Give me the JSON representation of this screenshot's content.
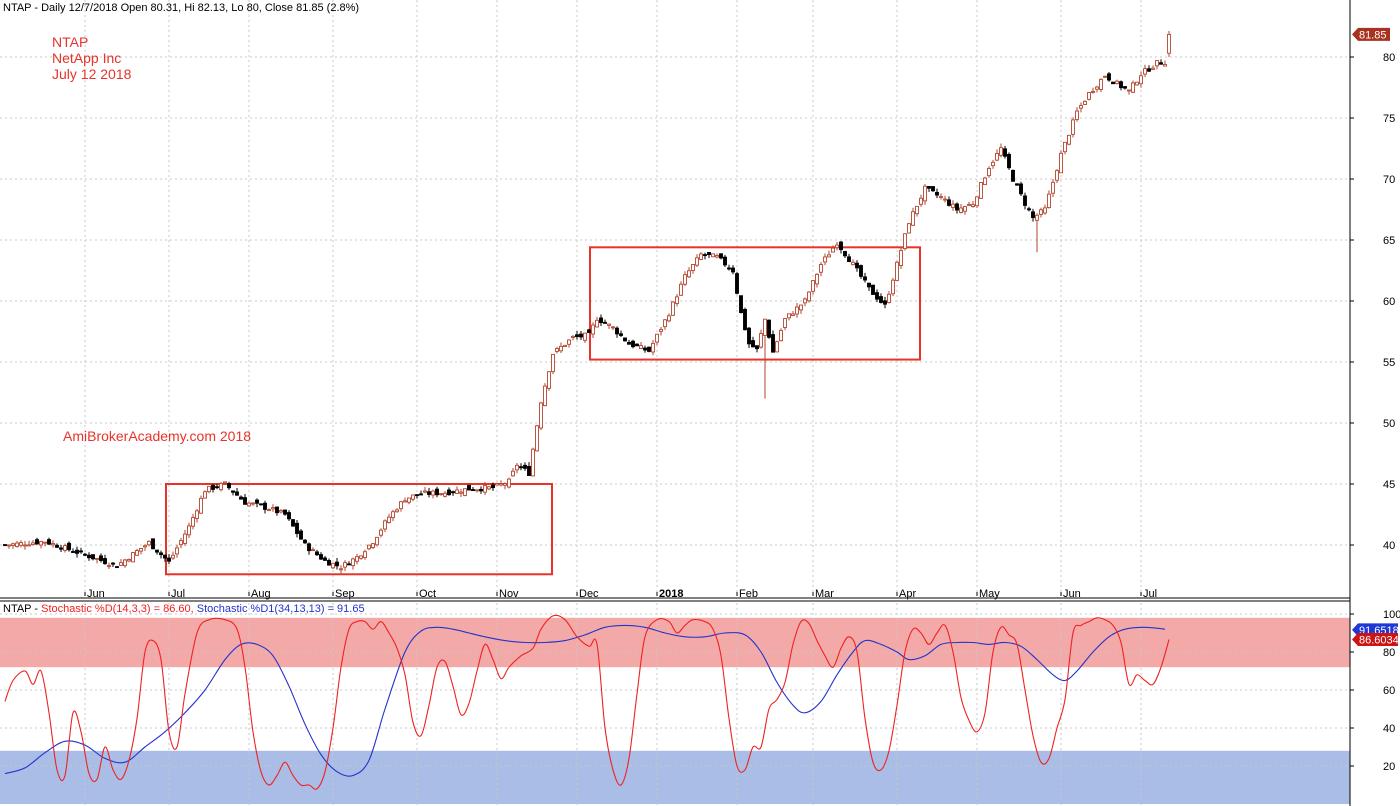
{
  "colors": {
    "up_candle": "#b5462f",
    "down_candle": "#000000",
    "box": "#e8332a",
    "stoch_fast": "#ee2222",
    "stoch_slow": "#2233cc",
    "overbought_band": "#f4a9a9",
    "oversold_band": "#a9bde6",
    "grid": "#c8c8c8",
    "price_badge": "#a8321f",
    "stoch_blue_badge": "#1f37d6",
    "stoch_red_badge": "#cc1414"
  },
  "header": {
    "price_title": "NTAP - Daily 12/7/2018 Open 80.31, Hi 82.13, Lo 80, Close 81.85 (2.8%)",
    "stoch_prefix": "NTAP - ",
    "stoch_fast_label": "Stochastic %D(14,3,3) = 86.60, ",
    "stoch_slow_label": "Stochastic %D1(34,13,13) = 91.65"
  },
  "annotations": {
    "ticker": "NTAP",
    "company": "NetApp Inc",
    "date": "July 12 2018",
    "credit": "AmiBrokerAcademy.com  2018"
  },
  "badges": {
    "last_price": "81.85",
    "stoch_slow_value": "91.6518",
    "stoch_fast_value": "86.6034"
  },
  "chart_data": [
    {
      "type": "candlestick",
      "ylim": [
        36,
        84
      ],
      "y_ticks": [
        40,
        45,
        50,
        55,
        60,
        65,
        70,
        75,
        80
      ],
      "x_tick_labels": [
        "Jun",
        "Jul",
        "Aug",
        "Sep",
        "Oct",
        "Nov",
        "Dec",
        "2018",
        "Feb",
        "Mar",
        "Apr",
        "May",
        "Jun",
        "Jul"
      ],
      "x_tick_index": [
        20,
        41,
        61,
        82,
        103,
        123,
        143,
        163,
        183,
        202,
        223,
        243,
        264,
        284
      ],
      "bars": 292,
      "last": {
        "open": 80.31,
        "high": 82.13,
        "low": 80,
        "close": 81.85
      },
      "close_anchors": [
        [
          0,
          40.0
        ],
        [
          10,
          40.3
        ],
        [
          20,
          39.2
        ],
        [
          28,
          38.3
        ],
        [
          36,
          40.2
        ],
        [
          41,
          38.6
        ],
        [
          46,
          41.5
        ],
        [
          50,
          44.5
        ],
        [
          55,
          45.0
        ],
        [
          60,
          43.5
        ],
        [
          66,
          43.0
        ],
        [
          70,
          42.5
        ],
        [
          75,
          40.0
        ],
        [
          80,
          38.7
        ],
        [
          84,
          38.2
        ],
        [
          88,
          39.0
        ],
        [
          92,
          40.3
        ],
        [
          96,
          42.3
        ],
        [
          100,
          43.8
        ],
        [
          104,
          44.2
        ],
        [
          110,
          44.3
        ],
        [
          116,
          44.6
        ],
        [
          122,
          44.7
        ],
        [
          126,
          45.2
        ],
        [
          128,
          46.6
        ],
        [
          131,
          45.9
        ],
        [
          134,
          51.8
        ],
        [
          137,
          55.7
        ],
        [
          142,
          57.0
        ],
        [
          146,
          57.2
        ],
        [
          148,
          58.6
        ],
        [
          152,
          57.8
        ],
        [
          156,
          56.5
        ],
        [
          161,
          55.9
        ],
        [
          166,
          59.0
        ],
        [
          170,
          62.0
        ],
        [
          174,
          63.8
        ],
        [
          178,
          63.6
        ],
        [
          182,
          62.5
        ],
        [
          184,
          59.0
        ],
        [
          186,
          56.5
        ],
        [
          188,
          56.0
        ],
        [
          190,
          58.5
        ],
        [
          192,
          55.8
        ],
        [
          195,
          58.5
        ],
        [
          200,
          60.0
        ],
        [
          204,
          63.0
        ],
        [
          208,
          64.8
        ],
        [
          212,
          63.0
        ],
        [
          216,
          61.0
        ],
        [
          220,
          59.6
        ],
        [
          223,
          63.0
        ],
        [
          226,
          66.5
        ],
        [
          230,
          69.2
        ],
        [
          234,
          68.5
        ],
        [
          238,
          67.5
        ],
        [
          242,
          68.0
        ],
        [
          246,
          71.0
        ],
        [
          249,
          72.5
        ],
        [
          252,
          70.0
        ],
        [
          255,
          68.0
        ],
        [
          257,
          66.8
        ],
        [
          260,
          67.5
        ],
        [
          264,
          72.0
        ],
        [
          268,
          75.5
        ],
        [
          271,
          77.0
        ],
        [
          275,
          78.5
        ],
        [
          278,
          77.8
        ],
        [
          281,
          77.2
        ],
        [
          284,
          78.6
        ],
        [
          288,
          79.5
        ],
        [
          290,
          79.6
        ],
        [
          291,
          81.85
        ]
      ],
      "boxes": [
        {
          "from_bar": 41,
          "to_bar": 136,
          "top": 45.0,
          "bottom": 37.6
        },
        {
          "from_bar": 147,
          "to_bar": 228,
          "top": 64.4,
          "bottom": 55.2
        }
      ],
      "extras": [
        [
          134,
          51.2
        ],
        [
          190,
          52.0
        ],
        [
          258,
          64.0
        ]
      ]
    },
    {
      "type": "line",
      "ylim": [
        0,
        100
      ],
      "y_ticks": [
        20,
        40,
        60,
        80,
        100
      ],
      "bands": [
        {
          "from": 72,
          "to": 98,
          "name": "overbought"
        },
        {
          "from": 0,
          "to": 28,
          "name": "oversold"
        }
      ],
      "series": [
        {
          "name": "Stochastic %D(14,3,3)",
          "last": 86.6,
          "points": [
            [
              0,
              54
            ],
            [
              2,
              65
            ],
            [
              5,
              70
            ],
            [
              7,
              63
            ],
            [
              9,
              70
            ],
            [
              11,
              48
            ],
            [
              13,
              18
            ],
            [
              15,
              15
            ],
            [
              17,
              48
            ],
            [
              19,
              38
            ],
            [
              21,
              16
            ],
            [
              23,
              13
            ],
            [
              25,
              30
            ],
            [
              27,
              18
            ],
            [
              29,
              13
            ],
            [
              31,
              23
            ],
            [
              33,
              45
            ],
            [
              35,
              80
            ],
            [
              37,
              86
            ],
            [
              39,
              76
            ],
            [
              41,
              38
            ],
            [
              43,
              30
            ],
            [
              45,
              58
            ],
            [
              48,
              90
            ],
            [
              51,
              97
            ],
            [
              55,
              97
            ],
            [
              58,
              92
            ],
            [
              60,
              72
            ],
            [
              62,
              38
            ],
            [
              64,
              17
            ],
            [
              66,
              10
            ],
            [
              68,
              15
            ],
            [
              70,
              22
            ],
            [
              72,
              15
            ],
            [
              74,
              10
            ],
            [
              76,
              10
            ],
            [
              78,
              8
            ],
            [
              80,
              17
            ],
            [
              82,
              40
            ],
            [
              84,
              72
            ],
            [
              86,
              92
            ],
            [
              88,
              96
            ],
            [
              90,
              96
            ],
            [
              92,
              92
            ],
            [
              94,
              96
            ],
            [
              96,
              90
            ],
            [
              98,
              82
            ],
            [
              100,
              68
            ],
            [
              102,
              43
            ],
            [
              104,
              36
            ],
            [
              106,
              52
            ],
            [
              108,
              72
            ],
            [
              110,
              75
            ],
            [
              112,
              62
            ],
            [
              114,
              47
            ],
            [
              116,
              53
            ],
            [
              118,
              70
            ],
            [
              120,
              84
            ],
            [
              122,
              76
            ],
            [
              124,
              66
            ],
            [
              126,
              72
            ],
            [
              129,
              78
            ],
            [
              132,
              82
            ],
            [
              134,
              92
            ],
            [
              137,
              99
            ],
            [
              140,
              97
            ],
            [
              143,
              88
            ],
            [
              146,
              83
            ],
            [
              148,
              84
            ],
            [
              150,
              40
            ],
            [
              152,
              18
            ],
            [
              154,
              10
            ],
            [
              156,
              24
            ],
            [
              158,
              58
            ],
            [
              160,
              88
            ],
            [
              163,
              97
            ],
            [
              166,
              96
            ],
            [
              168,
              90
            ],
            [
              170,
              94
            ],
            [
              172,
              97
            ],
            [
              175,
              96
            ],
            [
              177,
              92
            ],
            [
              179,
              78
            ],
            [
              181,
              45
            ],
            [
              183,
              20
            ],
            [
              185,
              18
            ],
            [
              187,
              30
            ],
            [
              189,
              30
            ],
            [
              191,
              50
            ],
            [
              193,
              55
            ],
            [
              195,
              64
            ],
            [
              197,
              84
            ],
            [
              199,
              96
            ],
            [
              201,
              95
            ],
            [
              203,
              86
            ],
            [
              205,
              78
            ],
            [
              207,
              72
            ],
            [
              209,
              82
            ],
            [
              211,
              88
            ],
            [
              213,
              80
            ],
            [
              215,
              45
            ],
            [
              217,
              22
            ],
            [
              219,
              18
            ],
            [
              221,
              28
            ],
            [
              223,
              52
            ],
            [
              225,
              80
            ],
            [
              227,
              92
            ],
            [
              229,
              90
            ],
            [
              231,
              84
            ],
            [
              233,
              90
            ],
            [
              235,
              94
            ],
            [
              237,
              80
            ],
            [
              239,
              56
            ],
            [
              241,
              44
            ],
            [
              243,
              38
            ],
            [
              245,
              48
            ],
            [
              247,
              80
            ],
            [
              249,
              93
            ],
            [
              251,
              89
            ],
            [
              253,
              84
            ],
            [
              255,
              60
            ],
            [
              257,
              36
            ],
            [
              259,
              22
            ],
            [
              261,
              24
            ],
            [
              263,
              40
            ],
            [
              265,
              55
            ],
            [
              267,
              90
            ],
            [
              269,
              94
            ],
            [
              271,
              96
            ],
            [
              273,
              98
            ],
            [
              275,
              97
            ],
            [
              277,
              94
            ],
            [
              279,
              85
            ],
            [
              281,
              63
            ],
            [
              283,
              68
            ],
            [
              285,
              65
            ],
            [
              287,
              63
            ],
            [
              289,
              72
            ],
            [
              291,
              86.6
            ]
          ]
        },
        {
          "name": "Stochastic %D1(34,13,13)",
          "last": 91.65,
          "points": [
            [
              0,
              16
            ],
            [
              5,
              19
            ],
            [
              10,
              27
            ],
            [
              15,
              33
            ],
            [
              20,
              31
            ],
            [
              25,
              24
            ],
            [
              30,
              22
            ],
            [
              35,
              30
            ],
            [
              40,
              38
            ],
            [
              45,
              48
            ],
            [
              50,
              60
            ],
            [
              55,
              76
            ],
            [
              59,
              84
            ],
            [
              63,
              84
            ],
            [
              67,
              78
            ],
            [
              71,
              62
            ],
            [
              75,
              42
            ],
            [
              79,
              26
            ],
            [
              83,
              17
            ],
            [
              87,
              15
            ],
            [
              91,
              23
            ],
            [
              95,
              50
            ],
            [
              100,
              80
            ],
            [
              104,
              91
            ],
            [
              108,
              93
            ],
            [
              112,
              92
            ],
            [
              116,
              90
            ],
            [
              120,
              88
            ],
            [
              125,
              86
            ],
            [
              130,
              85
            ],
            [
              135,
              85
            ],
            [
              140,
              86
            ],
            [
              145,
              89
            ],
            [
              150,
              93
            ],
            [
              155,
              94
            ],
            [
              160,
              93
            ],
            [
              165,
              90
            ],
            [
              170,
              88
            ],
            [
              175,
              88
            ],
            [
              180,
              90
            ],
            [
              185,
              89
            ],
            [
              189,
              80
            ],
            [
              193,
              64
            ],
            [
              197,
              52
            ],
            [
              200,
              48
            ],
            [
              204,
              54
            ],
            [
              208,
              68
            ],
            [
              212,
              80
            ],
            [
              215,
              86
            ],
            [
              219,
              84
            ],
            [
              223,
              80
            ],
            [
              226,
              76
            ],
            [
              230,
              78
            ],
            [
              234,
              84
            ],
            [
              238,
              85
            ],
            [
              242,
              85
            ],
            [
              246,
              84
            ],
            [
              250,
              85
            ],
            [
              254,
              83
            ],
            [
              258,
              76
            ],
            [
              262,
              68
            ],
            [
              265,
              65
            ],
            [
              268,
              70
            ],
            [
              272,
              80
            ],
            [
              276,
              88
            ],
            [
              280,
              92
            ],
            [
              285,
              93
            ],
            [
              290,
              92
            ]
          ]
        }
      ]
    }
  ]
}
